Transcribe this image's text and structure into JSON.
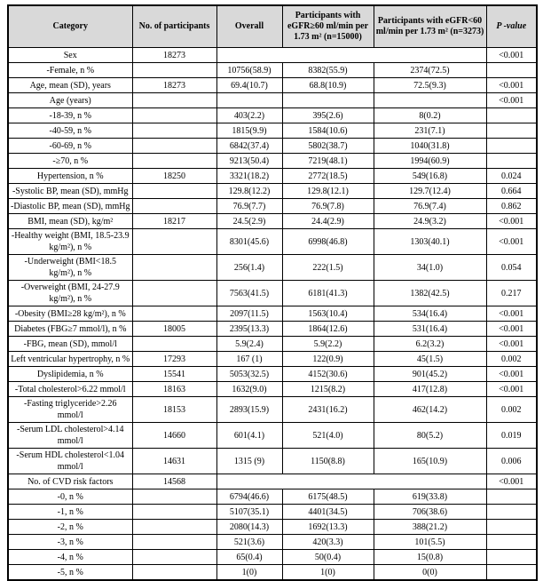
{
  "table": {
    "header": {
      "columns": [
        "Category",
        "No. of participants",
        "Overall",
        "Participants with eGFR≥60 ml/min per 1.73 m² (n=15000)",
        "Participants with eGFR<60 ml/min per 1.73 m² (n=3273)",
        "P -value"
      ]
    },
    "colors": {
      "header_bg": "#d9d9d9",
      "border": "#000000",
      "text": "#000000"
    },
    "rows": [
      {
        "category": "Sex",
        "participants": "18273",
        "overall": "",
        "egfr_ge60": "",
        "egfr_lt60": "",
        "p": "<0.001",
        "merged": true
      },
      {
        "category": "-Female, n %",
        "participants": "",
        "overall": "10756(58.9)",
        "egfr_ge60": "8382(55.9)",
        "egfr_lt60": "2374(72.5)",
        "p": "",
        "merged": false
      },
      {
        "category": "Age, mean (SD), years",
        "participants": "18273",
        "overall": "69.4(10.7)",
        "egfr_ge60": "68.8(10.9)",
        "egfr_lt60": "72.5(9.3)",
        "p": "<0.001",
        "merged": false
      },
      {
        "category": "Age (years)",
        "participants": "",
        "overall": "",
        "egfr_ge60": "",
        "egfr_lt60": "",
        "p": "<0.001",
        "merged": false
      },
      {
        "category": "-18-39, n %",
        "participants": "",
        "overall": "403(2.2)",
        "egfr_ge60": "395(2.6)",
        "egfr_lt60": "8(0.2)",
        "p": "",
        "merged": false
      },
      {
        "category": "-40-59, n %",
        "participants": "",
        "overall": "1815(9.9)",
        "egfr_ge60": "1584(10.6)",
        "egfr_lt60": "231(7.1)",
        "p": "",
        "merged": false
      },
      {
        "category": "-60-69, n %",
        "participants": "",
        "overall": "6842(37.4)",
        "egfr_ge60": "5802(38.7)",
        "egfr_lt60": "1040(31.8)",
        "p": "",
        "merged": false
      },
      {
        "category": "-≥70, n %",
        "participants": "",
        "overall": "9213(50.4)",
        "egfr_ge60": "7219(48.1)",
        "egfr_lt60": "1994(60.9)",
        "p": "",
        "merged": false
      },
      {
        "category": "Hypertension, n %",
        "participants": "18250",
        "overall": "3321(18.2)",
        "egfr_ge60": "2772(18.5)",
        "egfr_lt60": "549(16.8)",
        "p": "0.024",
        "merged": false
      },
      {
        "category": "-Systolic BP, mean (SD), mmHg",
        "participants": "",
        "overall": "129.8(12.2)",
        "egfr_ge60": "129.8(12.1)",
        "egfr_lt60": "129.7(12.4)",
        "p": "0.664",
        "merged": false
      },
      {
        "category": "-Diastolic BP, mean (SD), mmHg",
        "participants": "",
        "overall": "76.9(7.7)",
        "egfr_ge60": "76.9(7.8)",
        "egfr_lt60": "76.9(7.4)",
        "p": "0.862",
        "merged": false
      },
      {
        "category": "BMI, mean (SD), kg/m²",
        "participants": "18217",
        "overall": "24.5(2.9)",
        "egfr_ge60": "24.4(2.9)",
        "egfr_lt60": "24.9(3.2)",
        "p": "<0.001",
        "merged": false
      },
      {
        "category": "-Healthy weight (BMI, 18.5-23.9 kg/m²), n %",
        "participants": "",
        "overall": "8301(45.6)",
        "egfr_ge60": "6998(46.8)",
        "egfr_lt60": "1303(40.1)",
        "p": "<0.001",
        "merged": false
      },
      {
        "category": "-Underweight (BMI<18.5 kg/m²), n %",
        "participants": "",
        "overall": "256(1.4)",
        "egfr_ge60": "222(1.5)",
        "egfr_lt60": "34(1.0)",
        "p": "0.054",
        "merged": false
      },
      {
        "category": "-Overweight (BMI, 24-27.9 kg/m²), n %",
        "participants": "",
        "overall": "7563(41.5)",
        "egfr_ge60": "6181(41.3)",
        "egfr_lt60": "1382(42.5)",
        "p": "0.217",
        "merged": false
      },
      {
        "category": "-Obesity (BMI≥28 kg/m²), n %",
        "participants": "",
        "overall": "2097(11.5)",
        "egfr_ge60": "1563(10.4)",
        "egfr_lt60": "534(16.4)",
        "p": "<0.001",
        "merged": false
      },
      {
        "category": "Diabetes (FBG≥7 mmol/l), n %",
        "participants": "18005",
        "overall": "2395(13.3)",
        "egfr_ge60": "1864(12.6)",
        "egfr_lt60": "531(16.4)",
        "p": "<0.001",
        "merged": false
      },
      {
        "category": "-FBG, mean (SD), mmol/l",
        "participants": "",
        "overall": "5.9(2.4)",
        "egfr_ge60": "5.9(2.2)",
        "egfr_lt60": "6.2(3.2)",
        "p": "<0.001",
        "merged": false
      },
      {
        "category": "Left ventricular hypertrophy, n %",
        "participants": "17293",
        "overall": "167 (1)",
        "egfr_ge60": "122(0.9)",
        "egfr_lt60": "45(1.5)",
        "p": "0.002",
        "merged": false
      },
      {
        "category": "Dyslipidemia, n %",
        "participants": "15541",
        "overall": "5053(32.5)",
        "egfr_ge60": "4152(30.6)",
        "egfr_lt60": "901(45.2)",
        "p": "<0.001",
        "merged": false
      },
      {
        "category": "-Total cholesterol>6.22 mmol/l",
        "participants": "18163",
        "overall": "1632(9.0)",
        "egfr_ge60": "1215(8.2)",
        "egfr_lt60": "417(12.8)",
        "p": "<0.001",
        "merged": false
      },
      {
        "category": "-Fasting triglyceride>2.26 mmol/l",
        "participants": "18153",
        "overall": "2893(15.9)",
        "egfr_ge60": "2431(16.2)",
        "egfr_lt60": "462(14.2)",
        "p": "0.002",
        "merged": false
      },
      {
        "category": "-Serum LDL cholesterol>4.14 mmol/l",
        "participants": "14660",
        "overall": "601(4.1)",
        "egfr_ge60": "521(4.0)",
        "egfr_lt60": "80(5.2)",
        "p": "0.019",
        "merged": false
      },
      {
        "category": "-Serum HDL cholesterol<1.04 mmol/l",
        "participants": "14631",
        "overall": "1315 (9)",
        "egfr_ge60": "1150(8.8)",
        "egfr_lt60": "165(10.9)",
        "p": "0.006",
        "merged": false
      },
      {
        "category": "No. of CVD risk factors",
        "participants": "14568",
        "overall": "",
        "egfr_ge60": "",
        "egfr_lt60": "",
        "p": "<0.001",
        "merged": true
      },
      {
        "category": "-0, n %",
        "participants": "",
        "overall": "6794(46.6)",
        "egfr_ge60": "6175(48.5)",
        "egfr_lt60": "619(33.8)",
        "p": "",
        "merged": false
      },
      {
        "category": "-1, n %",
        "participants": "",
        "overall": "5107(35.1)",
        "egfr_ge60": "4401(34.5)",
        "egfr_lt60": "706(38.6)",
        "p": "",
        "merged": false
      },
      {
        "category": "-2, n %",
        "participants": "",
        "overall": "2080(14.3)",
        "egfr_ge60": "1692(13.3)",
        "egfr_lt60": "388(21.2)",
        "p": "",
        "merged": false
      },
      {
        "category": "-3, n %",
        "participants": "",
        "overall": "521(3.6)",
        "egfr_ge60": "420(3.3)",
        "egfr_lt60": "101(5.5)",
        "p": "",
        "merged": false
      },
      {
        "category": "-4, n %",
        "participants": "",
        "overall": "65(0.4)",
        "egfr_ge60": "50(0.4)",
        "egfr_lt60": "15(0.8)",
        "p": "",
        "merged": false
      },
      {
        "category": "-5, n %",
        "participants": "",
        "overall": "1(0)",
        "egfr_ge60": "1(0)",
        "egfr_lt60": "0(0)",
        "p": "",
        "merged": false
      }
    ]
  }
}
